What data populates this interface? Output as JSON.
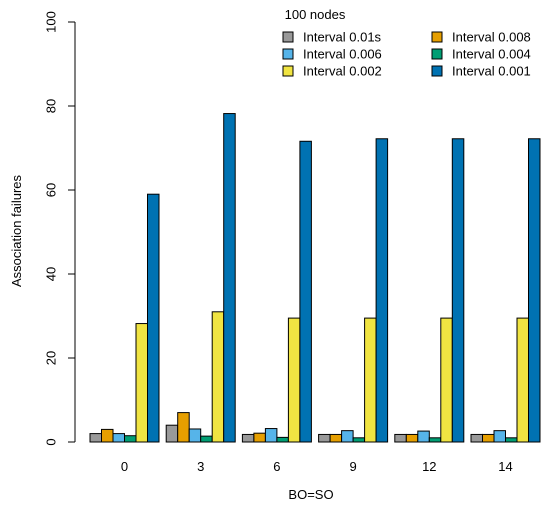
{
  "chart_data": {
    "type": "bar",
    "title": "100 nodes",
    "xlabel": "BO=SO",
    "ylabel": "Association failures",
    "ylim": [
      0,
      100
    ],
    "yticks": [
      0,
      20,
      40,
      60,
      80,
      100
    ],
    "grid": false,
    "legend_position": "top-right",
    "categories": [
      "0",
      "3",
      "6",
      "9",
      "12",
      "14"
    ],
    "series": [
      {
        "name": "Interval 0.01s",
        "color": "#999999",
        "values": [
          2,
          4,
          1.8,
          1.8,
          1.8,
          1.8
        ]
      },
      {
        "name": "Interval 0.008",
        "color": "#e69f00",
        "values": [
          3,
          7,
          2.1,
          1.8,
          1.8,
          1.8
        ]
      },
      {
        "name": "Interval 0.006",
        "color": "#56b4e9",
        "values": [
          2,
          3.1,
          3.2,
          2.7,
          2.6,
          2.7
        ]
      },
      {
        "name": "Interval 0.004",
        "color": "#009e73",
        "values": [
          1.5,
          1.4,
          1.1,
          1,
          1,
          1
        ]
      },
      {
        "name": "Interval 0.002",
        "color": "#f0e442",
        "values": [
          28.2,
          31,
          29.5,
          29.5,
          29.5,
          29.5
        ]
      },
      {
        "name": "Interval 0.001",
        "color": "#0072b2",
        "values": [
          59,
          78.2,
          71.6,
          72.2,
          72.2,
          72.2
        ]
      }
    ]
  }
}
